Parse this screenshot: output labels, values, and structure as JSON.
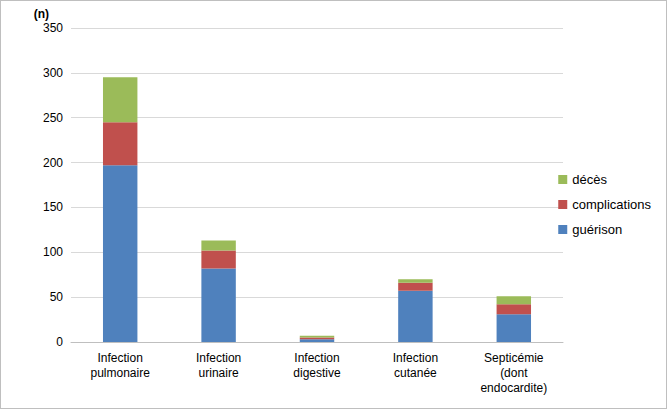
{
  "chart_data": {
    "type": "bar",
    "stacked": true,
    "y_label": "(n)",
    "categories": [
      "Infection\npulmonaire",
      "Infection\nurinaire",
      "Infection\ndigestive",
      "Infection\ncutanée",
      "Septicémie\n(dont\nendocardite)"
    ],
    "series": [
      {
        "name": "guérison",
        "color": "#4f81bd",
        "values": [
          197,
          82,
          3,
          57,
          31
        ]
      },
      {
        "name": "complications",
        "color": "#c0504d",
        "values": [
          48,
          20,
          2,
          9,
          11
        ]
      },
      {
        "name": "décès",
        "color": "#9bbb59",
        "values": [
          50,
          11,
          2,
          4,
          9
        ]
      }
    ],
    "ylim": [
      0,
      350
    ],
    "yticks": [
      0,
      50,
      100,
      150,
      200,
      250,
      300,
      350
    ],
    "grid": true,
    "legend": "right"
  }
}
